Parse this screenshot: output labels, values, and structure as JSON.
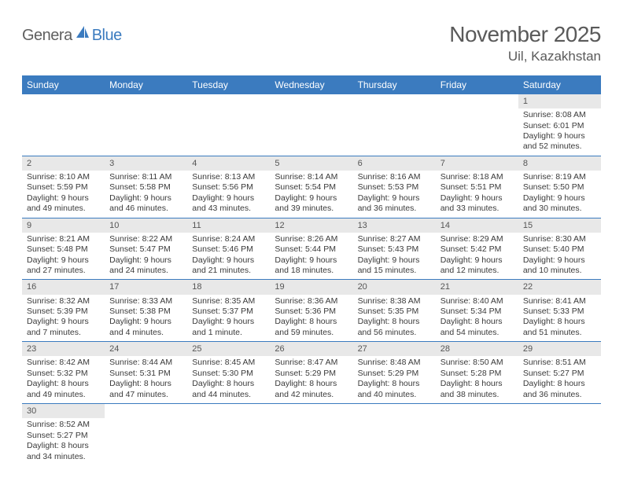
{
  "logo": {
    "text1": "Genera",
    "text2": "Blue"
  },
  "title": "November 2025",
  "location": "Uil, Kazakhstan",
  "colors": {
    "header_bg": "#3b7bbf",
    "header_fg": "#ffffff",
    "daynum_bg": "#e8e8e8",
    "rule": "#3b7bbf",
    "text": "#3a3a3a"
  },
  "weekdays": [
    "Sunday",
    "Monday",
    "Tuesday",
    "Wednesday",
    "Thursday",
    "Friday",
    "Saturday"
  ],
  "weeks": [
    [
      {
        "n": "",
        "sr": "",
        "ss": "",
        "dl": ""
      },
      {
        "n": "",
        "sr": "",
        "ss": "",
        "dl": ""
      },
      {
        "n": "",
        "sr": "",
        "ss": "",
        "dl": ""
      },
      {
        "n": "",
        "sr": "",
        "ss": "",
        "dl": ""
      },
      {
        "n": "",
        "sr": "",
        "ss": "",
        "dl": ""
      },
      {
        "n": "",
        "sr": "",
        "ss": "",
        "dl": ""
      },
      {
        "n": "1",
        "sr": "Sunrise: 8:08 AM",
        "ss": "Sunset: 6:01 PM",
        "dl": "Daylight: 9 hours and 52 minutes."
      }
    ],
    [
      {
        "n": "2",
        "sr": "Sunrise: 8:10 AM",
        "ss": "Sunset: 5:59 PM",
        "dl": "Daylight: 9 hours and 49 minutes."
      },
      {
        "n": "3",
        "sr": "Sunrise: 8:11 AM",
        "ss": "Sunset: 5:58 PM",
        "dl": "Daylight: 9 hours and 46 minutes."
      },
      {
        "n": "4",
        "sr": "Sunrise: 8:13 AM",
        "ss": "Sunset: 5:56 PM",
        "dl": "Daylight: 9 hours and 43 minutes."
      },
      {
        "n": "5",
        "sr": "Sunrise: 8:14 AM",
        "ss": "Sunset: 5:54 PM",
        "dl": "Daylight: 9 hours and 39 minutes."
      },
      {
        "n": "6",
        "sr": "Sunrise: 8:16 AM",
        "ss": "Sunset: 5:53 PM",
        "dl": "Daylight: 9 hours and 36 minutes."
      },
      {
        "n": "7",
        "sr": "Sunrise: 8:18 AM",
        "ss": "Sunset: 5:51 PM",
        "dl": "Daylight: 9 hours and 33 minutes."
      },
      {
        "n": "8",
        "sr": "Sunrise: 8:19 AM",
        "ss": "Sunset: 5:50 PM",
        "dl": "Daylight: 9 hours and 30 minutes."
      }
    ],
    [
      {
        "n": "9",
        "sr": "Sunrise: 8:21 AM",
        "ss": "Sunset: 5:48 PM",
        "dl": "Daylight: 9 hours and 27 minutes."
      },
      {
        "n": "10",
        "sr": "Sunrise: 8:22 AM",
        "ss": "Sunset: 5:47 PM",
        "dl": "Daylight: 9 hours and 24 minutes."
      },
      {
        "n": "11",
        "sr": "Sunrise: 8:24 AM",
        "ss": "Sunset: 5:46 PM",
        "dl": "Daylight: 9 hours and 21 minutes."
      },
      {
        "n": "12",
        "sr": "Sunrise: 8:26 AM",
        "ss": "Sunset: 5:44 PM",
        "dl": "Daylight: 9 hours and 18 minutes."
      },
      {
        "n": "13",
        "sr": "Sunrise: 8:27 AM",
        "ss": "Sunset: 5:43 PM",
        "dl": "Daylight: 9 hours and 15 minutes."
      },
      {
        "n": "14",
        "sr": "Sunrise: 8:29 AM",
        "ss": "Sunset: 5:42 PM",
        "dl": "Daylight: 9 hours and 12 minutes."
      },
      {
        "n": "15",
        "sr": "Sunrise: 8:30 AM",
        "ss": "Sunset: 5:40 PM",
        "dl": "Daylight: 9 hours and 10 minutes."
      }
    ],
    [
      {
        "n": "16",
        "sr": "Sunrise: 8:32 AM",
        "ss": "Sunset: 5:39 PM",
        "dl": "Daylight: 9 hours and 7 minutes."
      },
      {
        "n": "17",
        "sr": "Sunrise: 8:33 AM",
        "ss": "Sunset: 5:38 PM",
        "dl": "Daylight: 9 hours and 4 minutes."
      },
      {
        "n": "18",
        "sr": "Sunrise: 8:35 AM",
        "ss": "Sunset: 5:37 PM",
        "dl": "Daylight: 9 hours and 1 minute."
      },
      {
        "n": "19",
        "sr": "Sunrise: 8:36 AM",
        "ss": "Sunset: 5:36 PM",
        "dl": "Daylight: 8 hours and 59 minutes."
      },
      {
        "n": "20",
        "sr": "Sunrise: 8:38 AM",
        "ss": "Sunset: 5:35 PM",
        "dl": "Daylight: 8 hours and 56 minutes."
      },
      {
        "n": "21",
        "sr": "Sunrise: 8:40 AM",
        "ss": "Sunset: 5:34 PM",
        "dl": "Daylight: 8 hours and 54 minutes."
      },
      {
        "n": "22",
        "sr": "Sunrise: 8:41 AM",
        "ss": "Sunset: 5:33 PM",
        "dl": "Daylight: 8 hours and 51 minutes."
      }
    ],
    [
      {
        "n": "23",
        "sr": "Sunrise: 8:42 AM",
        "ss": "Sunset: 5:32 PM",
        "dl": "Daylight: 8 hours and 49 minutes."
      },
      {
        "n": "24",
        "sr": "Sunrise: 8:44 AM",
        "ss": "Sunset: 5:31 PM",
        "dl": "Daylight: 8 hours and 47 minutes."
      },
      {
        "n": "25",
        "sr": "Sunrise: 8:45 AM",
        "ss": "Sunset: 5:30 PM",
        "dl": "Daylight: 8 hours and 44 minutes."
      },
      {
        "n": "26",
        "sr": "Sunrise: 8:47 AM",
        "ss": "Sunset: 5:29 PM",
        "dl": "Daylight: 8 hours and 42 minutes."
      },
      {
        "n": "27",
        "sr": "Sunrise: 8:48 AM",
        "ss": "Sunset: 5:29 PM",
        "dl": "Daylight: 8 hours and 40 minutes."
      },
      {
        "n": "28",
        "sr": "Sunrise: 8:50 AM",
        "ss": "Sunset: 5:28 PM",
        "dl": "Daylight: 8 hours and 38 minutes."
      },
      {
        "n": "29",
        "sr": "Sunrise: 8:51 AM",
        "ss": "Sunset: 5:27 PM",
        "dl": "Daylight: 8 hours and 36 minutes."
      }
    ],
    [
      {
        "n": "30",
        "sr": "Sunrise: 8:52 AM",
        "ss": "Sunset: 5:27 PM",
        "dl": "Daylight: 8 hours and 34 minutes."
      },
      {
        "n": "",
        "sr": "",
        "ss": "",
        "dl": ""
      },
      {
        "n": "",
        "sr": "",
        "ss": "",
        "dl": ""
      },
      {
        "n": "",
        "sr": "",
        "ss": "",
        "dl": ""
      },
      {
        "n": "",
        "sr": "",
        "ss": "",
        "dl": ""
      },
      {
        "n": "",
        "sr": "",
        "ss": "",
        "dl": ""
      },
      {
        "n": "",
        "sr": "",
        "ss": "",
        "dl": ""
      }
    ]
  ]
}
